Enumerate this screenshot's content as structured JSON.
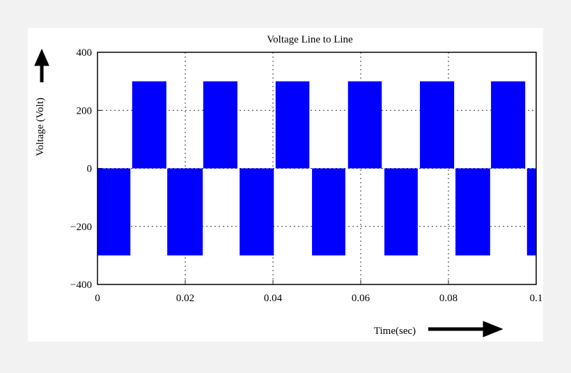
{
  "chart_data": {
    "type": "pulse",
    "title": "Voltage Line to Line",
    "x_label": "Time(sec)",
    "y_label": "Voltage (Volt)",
    "color": "#0000ff",
    "grid": true,
    "xlim": [
      0,
      0.1
    ],
    "ylim": [
      -400,
      400
    ],
    "xticks": [
      0,
      0.02,
      0.04,
      0.06,
      0.08,
      0.1
    ],
    "yticks": [
      {
        "value": -400,
        "label": "−400"
      },
      {
        "value": -200,
        "label": "−200"
      },
      0,
      200,
      400
    ],
    "pulses": [
      {
        "start": 0,
        "end": 0.0075,
        "value": -300
      },
      {
        "start": 0.0079,
        "end": 0.0157,
        "value": 300
      },
      {
        "start": 0.0159,
        "end": 0.024,
        "value": -300
      },
      {
        "start": 0.0241,
        "end": 0.0319,
        "value": 300
      },
      {
        "start": 0.0324,
        "end": 0.0402,
        "value": -300
      },
      {
        "start": 0.0406,
        "end": 0.0483,
        "value": 300
      },
      {
        "start": 0.0489,
        "end": 0.0565,
        "value": -300
      },
      {
        "start": 0.0571,
        "end": 0.0648,
        "value": 300
      },
      {
        "start": 0.0654,
        "end": 0.073,
        "value": -300
      },
      {
        "start": 0.0735,
        "end": 0.0813,
        "value": 300
      },
      {
        "start": 0.0816,
        "end": 0.0895,
        "value": -300
      },
      {
        "start": 0.0897,
        "end": 0.0975,
        "value": 300
      },
      {
        "start": 0.0979,
        "end": 0.1,
        "value": -300
      }
    ]
  }
}
